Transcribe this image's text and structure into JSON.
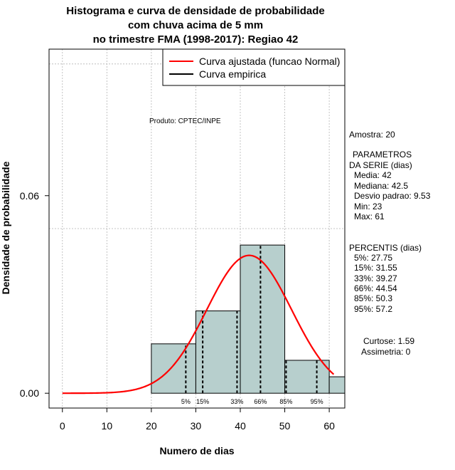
{
  "chart_data": {
    "type": "bar",
    "title_lines": [
      "Histograma e curva de densidade de probabilidade",
      "com chuva acima de 5 mm",
      "no trimestre FMA (1998-2017): Regiao 42"
    ],
    "xlabel": "Numero de dias",
    "ylabel": "Densidade de probabilidade",
    "xlim": [
      -3,
      63.5
    ],
    "ylim": [
      -0.0045,
      0.1045
    ],
    "x_ticks": [
      0,
      10,
      20,
      30,
      40,
      50,
      60
    ],
    "y_ticks": [
      0.0,
      0.06
    ],
    "y_tick_labels": [
      "0.00",
      "0.06"
    ],
    "grid_x": [
      0,
      10,
      20,
      30,
      40,
      50,
      60
    ],
    "grid_y": [
      0.05,
      0.1
    ],
    "bins": [
      {
        "from": 20,
        "to": 30,
        "density": 0.015
      },
      {
        "from": 30,
        "to": 40,
        "density": 0.025
      },
      {
        "from": 40,
        "to": 50,
        "density": 0.045
      },
      {
        "from": 50,
        "to": 60,
        "density": 0.01
      },
      {
        "from": 60,
        "to": 70,
        "density": 0.005
      }
    ],
    "fitted_curve": {
      "name": "Curva ajustada (funcao Normal)",
      "mean": 42,
      "sd": 9.53,
      "color": "#ff0000"
    },
    "empirical_curve": {
      "name": "Curva empirica",
      "color": "#000000"
    },
    "percentile_lines": [
      {
        "label": "5%",
        "x": 27.75
      },
      {
        "label": "15%",
        "x": 31.55
      },
      {
        "label": "33%",
        "x": 39.27
      },
      {
        "label": "66%",
        "x": 44.54
      },
      {
        "label": "85%",
        "x": 50.3
      },
      {
        "label": "95%",
        "x": 57.2
      }
    ],
    "bar_color": "#b7cfcd",
    "legend": {
      "position": "top-right"
    },
    "product_note": "Produto: CPTEC/INPE"
  },
  "stats": {
    "amostra": "Amostra: 20",
    "param_title_1": "PARAMETROS",
    "param_title_2": "DA SERIE (dias)",
    "media": "Media: 42",
    "mediana": "Mediana: 42.5",
    "desvio": "Desvio padrao: 9.53",
    "min": "Min: 23",
    "max": "Max: 61",
    "percentis_title": "PERCENTIS (dias)",
    "p5": "5%: 27.75",
    "p15": "15%: 31.55",
    "p33": "33%: 39.27",
    "p66": "66%: 44.54",
    "p85": "85%: 50.3",
    "p95": "95%: 57.2",
    "curtose": "Curtose: 1.59",
    "assimetria": "Assimetria: 0"
  }
}
